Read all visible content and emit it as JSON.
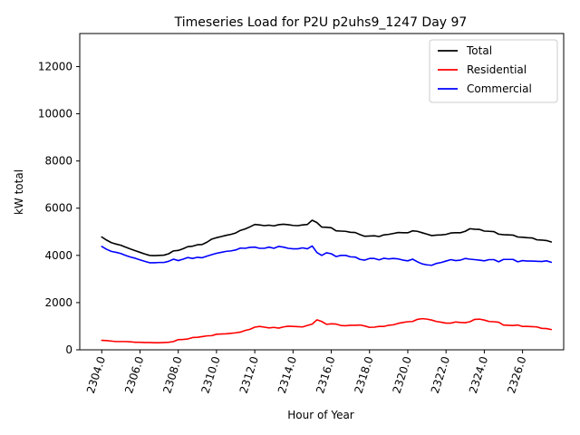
{
  "chart_data": {
    "type": "line",
    "title": "Timeseries Load for P2U p2uhs9_1247  Day 97",
    "xlabel": "Hour of Year",
    "ylabel": "kW total",
    "xlim": [
      2302.85,
      2328.15
    ],
    "ylim": [
      0,
      13400
    ],
    "x_ticks": [
      2304,
      2306,
      2308,
      2310,
      2312,
      2314,
      2316,
      2318,
      2320,
      2322,
      2324,
      2326
    ],
    "x_tick_labels": [
      "2304.0",
      "2306.0",
      "2308.0",
      "2310.0",
      "2312.0",
      "2314.0",
      "2316.0",
      "2318.0",
      "2320.0",
      "2322.0",
      "2324.0",
      "2326.0"
    ],
    "y_ticks": [
      0,
      2000,
      4000,
      6000,
      8000,
      10000,
      12000
    ],
    "y_tick_labels": [
      "0",
      "2000",
      "4000",
      "6000",
      "8000",
      "10000",
      "12000"
    ],
    "legend_position": "top-right",
    "x_start": 2304.0,
    "x_step": 0.25,
    "series": [
      {
        "name": "Total",
        "color": "#000000",
        "values": [
          4780,
          4650,
          4540,
          4480,
          4430,
          4350,
          4270,
          4200,
          4130,
          4060,
          4000,
          3990,
          4000,
          4010,
          4070,
          4190,
          4210,
          4280,
          4370,
          4390,
          4450,
          4460,
          4560,
          4690,
          4750,
          4800,
          4850,
          4890,
          4950,
          5060,
          5120,
          5210,
          5310,
          5290,
          5260,
          5280,
          5250,
          5300,
          5320,
          5300,
          5270,
          5260,
          5290,
          5310,
          5490,
          5390,
          5200,
          5190,
          5170,
          5040,
          5030,
          5020,
          4980,
          4970,
          4880,
          4810,
          4820,
          4830,
          4800,
          4870,
          4890,
          4930,
          4970,
          4960,
          4960,
          5040,
          5020,
          4960,
          4900,
          4840,
          4860,
          4870,
          4890,
          4950,
          4960,
          4960,
          5020,
          5130,
          5110,
          5100,
          5030,
          5020,
          5010,
          4900,
          4880,
          4870,
          4860,
          4780,
          4770,
          4750,
          4740,
          4660,
          4650,
          4630,
          4570
        ]
      },
      {
        "name": "Residential",
        "color": "#ff0000",
        "values": [
          400,
          390,
          370,
          350,
          350,
          350,
          340,
          320,
          320,
          310,
          310,
          300,
          300,
          310,
          320,
          350,
          430,
          440,
          460,
          520,
          530,
          560,
          590,
          600,
          660,
          670,
          680,
          700,
          720,
          750,
          820,
          870,
          960,
          990,
          960,
          930,
          950,
          920,
          970,
          1000,
          990,
          980,
          970,
          1030,
          1090,
          1270,
          1200,
          1080,
          1100,
          1090,
          1030,
          1020,
          1040,
          1040,
          1050,
          1010,
          950,
          960,
          990,
          990,
          1040,
          1060,
          1120,
          1160,
          1190,
          1200,
          1290,
          1320,
          1300,
          1260,
          1200,
          1170,
          1130,
          1130,
          1180,
          1160,
          1150,
          1190,
          1290,
          1300,
          1260,
          1200,
          1190,
          1170,
          1050,
          1040,
          1030,
          1050,
          990,
          990,
          980,
          970,
          910,
          900,
          860
        ]
      },
      {
        "name": "Commercial",
        "color": "#0000ff",
        "values": [
          4380,
          4260,
          4170,
          4130,
          4080,
          4000,
          3930,
          3880,
          3810,
          3750,
          3690,
          3690,
          3700,
          3700,
          3750,
          3840,
          3780,
          3840,
          3910,
          3870,
          3920,
          3900,
          3970,
          4030,
          4090,
          4130,
          4170,
          4190,
          4230,
          4310,
          4300,
          4340,
          4350,
          4300,
          4300,
          4350,
          4300,
          4380,
          4350,
          4300,
          4280,
          4280,
          4320,
          4280,
          4400,
          4120,
          4000,
          4110,
          4070,
          3950,
          4000,
          4000,
          3940,
          3930,
          3830,
          3800,
          3870,
          3870,
          3810,
          3880,
          3850,
          3870,
          3850,
          3800,
          3770,
          3840,
          3730,
          3640,
          3600,
          3580,
          3660,
          3700,
          3760,
          3820,
          3780,
          3800,
          3870,
          3840,
          3820,
          3800,
          3770,
          3820,
          3820,
          3730,
          3830,
          3830,
          3830,
          3730,
          3780,
          3760,
          3760,
          3750,
          3740,
          3770,
          3710
        ]
      }
    ]
  }
}
